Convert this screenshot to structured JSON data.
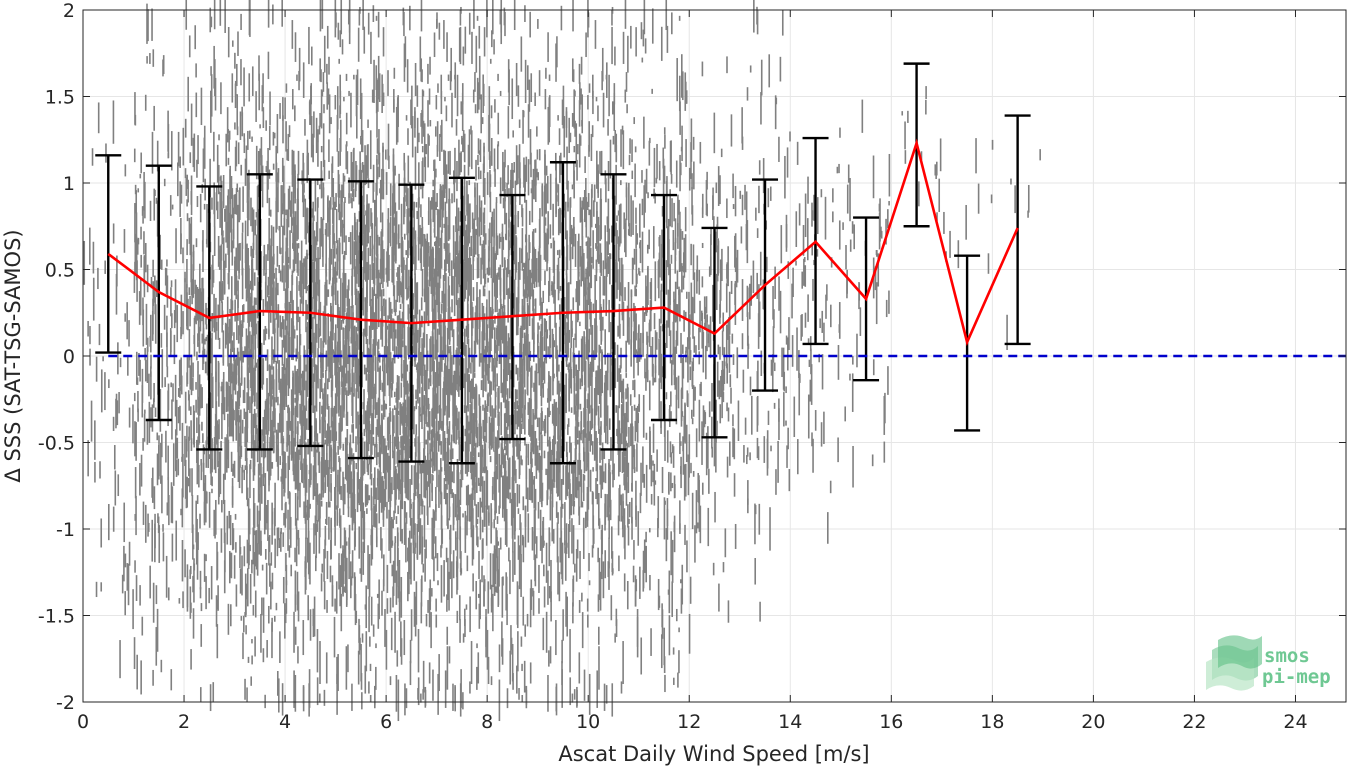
{
  "chart_data": {
    "type": "scatter",
    "title": "",
    "xlabel": "Ascat Daily Wind Speed [m/s]",
    "ylabel": "Δ SSS (SAT-TSG-SAMOS)",
    "xlim": [
      0,
      25
    ],
    "ylim": [
      -2,
      2
    ],
    "xticks": [
      0,
      2,
      4,
      6,
      8,
      10,
      12,
      14,
      16,
      18,
      20,
      22,
      24
    ],
    "yticks": [
      -2,
      -1.5,
      -1,
      -0.5,
      0,
      0.5,
      1,
      1.5,
      2
    ],
    "xtick_labels": [
      "0",
      "2",
      "4",
      "6",
      "8",
      "10",
      "12",
      "14",
      "16",
      "18",
      "20",
      "22",
      "24"
    ],
    "ytick_labels": [
      "-2",
      "-1.5",
      "-1",
      "-0.5",
      "0",
      "0.5",
      "1",
      "1.5",
      "2"
    ],
    "grid": true,
    "colors": {
      "scatter": "#808080",
      "mean_line": "#ff0000",
      "error_bars": "#000000",
      "zero_line": "#0000cc"
    },
    "scatter_density": [
      {
        "x": 0.5,
        "count": 60,
        "ymin": -1.9,
        "ymax": 1.4
      },
      {
        "x": 1.5,
        "count": 220,
        "ymin": -1.9,
        "ymax": 1.95
      },
      {
        "x": 2.5,
        "count": 420,
        "ymin": -2.0,
        "ymax": 2.0
      },
      {
        "x": 3.5,
        "count": 560,
        "ymin": -2.0,
        "ymax": 2.0
      },
      {
        "x": 4.5,
        "count": 640,
        "ymin": -2.0,
        "ymax": 2.0
      },
      {
        "x": 5.5,
        "count": 680,
        "ymin": -2.0,
        "ymax": 2.0
      },
      {
        "x": 6.5,
        "count": 700,
        "ymin": -2.0,
        "ymax": 2.0
      },
      {
        "x": 7.5,
        "count": 660,
        "ymin": -2.0,
        "ymax": 2.0
      },
      {
        "x": 8.5,
        "count": 600,
        "ymin": -2.0,
        "ymax": 2.0
      },
      {
        "x": 9.5,
        "count": 540,
        "ymin": -2.0,
        "ymax": 2.0
      },
      {
        "x": 10.5,
        "count": 440,
        "ymin": -2.0,
        "ymax": 2.0
      },
      {
        "x": 11.5,
        "count": 300,
        "ymin": -1.9,
        "ymax": 2.0
      },
      {
        "x": 12.5,
        "count": 180,
        "ymin": -1.5,
        "ymax": 1.7
      },
      {
        "x": 13.5,
        "count": 110,
        "ymin": -1.5,
        "ymax": 2.0
      },
      {
        "x": 14.5,
        "count": 70,
        "ymin": -1.1,
        "ymax": 1.8
      },
      {
        "x": 15.5,
        "count": 45,
        "ymin": -0.65,
        "ymax": 1.6
      },
      {
        "x": 16.5,
        "count": 14,
        "ymin": 0.6,
        "ymax": 1.9
      },
      {
        "x": 17.5,
        "count": 10,
        "ymin": -0.2,
        "ymax": 1.25
      },
      {
        "x": 18.5,
        "count": 6,
        "ymin": 0.0,
        "ymax": 1.5
      }
    ],
    "series": [
      {
        "x": [
          0.5,
          1.5,
          2.5,
          3.5,
          4.5,
          5.5,
          6.5,
          7.5,
          8.5,
          9.5,
          10.5,
          11.5,
          12.5,
          13.5,
          14.5,
          15.5,
          16.5,
          17.5,
          18.5
        ],
        "values": [
          0.59,
          0.37,
          0.22,
          0.26,
          0.25,
          0.21,
          0.19,
          0.21,
          0.23,
          0.25,
          0.26,
          0.28,
          0.13,
          0.41,
          0.66,
          0.33,
          1.23,
          0.08,
          0.74
        ],
        "err_upper": [
          1.16,
          1.1,
          0.98,
          1.05,
          1.02,
          1.01,
          0.99,
          1.03,
          0.93,
          1.12,
          1.05,
          0.93,
          0.74,
          1.02,
          1.26,
          0.8,
          1.69,
          0.58,
          1.39
        ],
        "err_lower": [
          0.02,
          -0.37,
          -0.54,
          -0.54,
          -0.52,
          -0.59,
          -0.61,
          -0.62,
          -0.48,
          -0.62,
          -0.54,
          -0.37,
          -0.47,
          -0.2,
          0.07,
          -0.14,
          0.75,
          -0.43,
          0.07
        ]
      }
    ],
    "reference_line": {
      "y": 0,
      "style": "dashed"
    },
    "logo": {
      "line1": "smos",
      "line2": "pi-mep"
    }
  }
}
